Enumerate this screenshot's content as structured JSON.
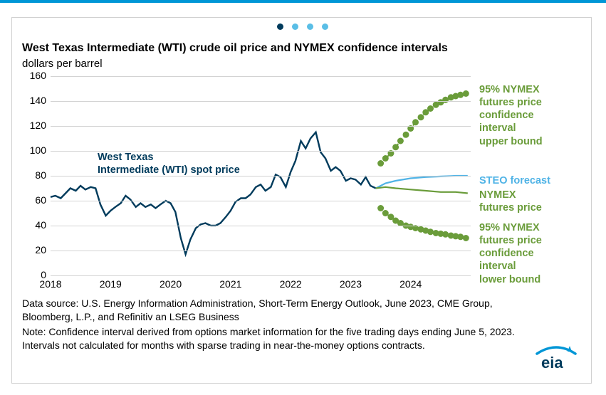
{
  "pager": {
    "count": 4,
    "active": 0,
    "active_color": "#003b5c",
    "inactive_color": "#5abee6"
  },
  "title": "West Texas Intermediate (WTI) crude oil price and NYMEX confidence intervals",
  "subtitle": "dollars per barrel",
  "chart": {
    "type": "line",
    "background_color": "#ffffff",
    "grid_color": "#d3d3d3",
    "yaxis": {
      "min": 0,
      "max": 160,
      "step": 20
    },
    "xaxis": {
      "min": 2018,
      "max": 2025,
      "ticks": [
        2018,
        2019,
        2020,
        2021,
        2022,
        2023,
        2024
      ]
    },
    "series": {
      "wti_spot": {
        "color": "#003b5c",
        "width": 2.4,
        "data": [
          [
            2018.0,
            63
          ],
          [
            2018.08,
            64
          ],
          [
            2018.17,
            62
          ],
          [
            2018.25,
            66
          ],
          [
            2018.33,
            70
          ],
          [
            2018.42,
            68
          ],
          [
            2018.5,
            72
          ],
          [
            2018.58,
            69
          ],
          [
            2018.67,
            71
          ],
          [
            2018.75,
            70
          ],
          [
            2018.83,
            57
          ],
          [
            2018.92,
            48
          ],
          [
            2019.0,
            52
          ],
          [
            2019.08,
            55
          ],
          [
            2019.17,
            58
          ],
          [
            2019.25,
            64
          ],
          [
            2019.33,
            61
          ],
          [
            2019.42,
            55
          ],
          [
            2019.5,
            58
          ],
          [
            2019.58,
            55
          ],
          [
            2019.67,
            57
          ],
          [
            2019.75,
            54
          ],
          [
            2019.83,
            57
          ],
          [
            2019.92,
            60
          ],
          [
            2020.0,
            58
          ],
          [
            2020.08,
            51
          ],
          [
            2020.17,
            30
          ],
          [
            2020.25,
            17
          ],
          [
            2020.33,
            29
          ],
          [
            2020.42,
            38
          ],
          [
            2020.5,
            41
          ],
          [
            2020.58,
            42
          ],
          [
            2020.67,
            40
          ],
          [
            2020.75,
            40
          ],
          [
            2020.83,
            42
          ],
          [
            2020.92,
            47
          ],
          [
            2021.0,
            52
          ],
          [
            2021.08,
            59
          ],
          [
            2021.17,
            62
          ],
          [
            2021.25,
            62
          ],
          [
            2021.33,
            65
          ],
          [
            2021.42,
            71
          ],
          [
            2021.5,
            73
          ],
          [
            2021.58,
            68
          ],
          [
            2021.67,
            71
          ],
          [
            2021.75,
            81
          ],
          [
            2021.83,
            79
          ],
          [
            2021.92,
            71
          ],
          [
            2022.0,
            83
          ],
          [
            2022.08,
            92
          ],
          [
            2022.17,
            108
          ],
          [
            2022.25,
            102
          ],
          [
            2022.33,
            110
          ],
          [
            2022.42,
            115
          ],
          [
            2022.5,
            99
          ],
          [
            2022.58,
            94
          ],
          [
            2022.67,
            84
          ],
          [
            2022.75,
            87
          ],
          [
            2022.83,
            84
          ],
          [
            2022.92,
            76
          ],
          [
            2023.0,
            78
          ],
          [
            2023.08,
            77
          ],
          [
            2023.17,
            73
          ],
          [
            2023.25,
            79
          ],
          [
            2023.33,
            72
          ],
          [
            2023.42,
            70
          ]
        ]
      },
      "steo_forecast": {
        "color": "#4fb3e6",
        "width": 2.2,
        "data": [
          [
            2023.42,
            70
          ],
          [
            2023.58,
            74
          ],
          [
            2023.75,
            76
          ],
          [
            2024.0,
            78
          ],
          [
            2024.25,
            79
          ],
          [
            2024.5,
            79.5
          ],
          [
            2024.75,
            80
          ],
          [
            2024.95,
            80
          ]
        ]
      },
      "nymex_futures": {
        "color": "#6a9c3a",
        "width": 2.2,
        "data": [
          [
            2023.42,
            70
          ],
          [
            2023.58,
            71
          ],
          [
            2023.75,
            70
          ],
          [
            2024.0,
            69
          ],
          [
            2024.25,
            68
          ],
          [
            2024.5,
            67
          ],
          [
            2024.75,
            67
          ],
          [
            2024.95,
            66
          ]
        ]
      },
      "ci_upper": {
        "color": "#6a9c3a",
        "width": 2,
        "marker": "circle",
        "marker_size": 4.5,
        "dash": "2,5",
        "data": [
          [
            2023.5,
            90
          ],
          [
            2023.58,
            94
          ],
          [
            2023.67,
            98
          ],
          [
            2023.75,
            103
          ],
          [
            2023.83,
            108
          ],
          [
            2023.92,
            113
          ],
          [
            2024.0,
            118
          ],
          [
            2024.08,
            123
          ],
          [
            2024.17,
            127
          ],
          [
            2024.25,
            131
          ],
          [
            2024.33,
            134
          ],
          [
            2024.42,
            137
          ],
          [
            2024.5,
            139
          ],
          [
            2024.58,
            141
          ],
          [
            2024.67,
            143
          ],
          [
            2024.75,
            144
          ],
          [
            2024.83,
            145
          ],
          [
            2024.92,
            146
          ]
        ]
      },
      "ci_lower": {
        "color": "#6a9c3a",
        "width": 2,
        "marker": "circle",
        "marker_size": 4.5,
        "dash": "2,5",
        "data": [
          [
            2023.5,
            54
          ],
          [
            2023.58,
            50
          ],
          [
            2023.67,
            47
          ],
          [
            2023.75,
            44
          ],
          [
            2023.83,
            42
          ],
          [
            2023.92,
            40
          ],
          [
            2024.0,
            39
          ],
          [
            2024.08,
            38
          ],
          [
            2024.17,
            37
          ],
          [
            2024.25,
            36
          ],
          [
            2024.33,
            35
          ],
          [
            2024.42,
            34
          ],
          [
            2024.5,
            33.5
          ],
          [
            2024.58,
            33
          ],
          [
            2024.67,
            32
          ],
          [
            2024.75,
            31.5
          ],
          [
            2024.83,
            31
          ],
          [
            2024.92,
            30
          ]
        ]
      }
    },
    "annotations": {
      "wti_label": {
        "text": "West Texas\nIntermediate (WTI) spot price",
        "color": "#003b5c"
      },
      "upper_label": {
        "text": "95% NYMEX\nfutures price\nconfidence\ninterval\nupper bound",
        "color": "#6a9c3a"
      },
      "steo_label": {
        "text": "STEO forecast",
        "color": "#4fb3e6"
      },
      "futures_label": {
        "text": "NYMEX\nfutures price",
        "color": "#6a9c3a"
      },
      "lower_label": {
        "text": "95% NYMEX\nfutures price\nconfidence\ninterval\nlower bound",
        "color": "#6a9c3a"
      }
    }
  },
  "footer": {
    "source": "Data source: U.S. Energy Information Administration, Short-Term Energy Outlook, June 2023, CME Group, Bloomberg, L.P., and Refinitiv an LSEG Business",
    "note": "Note: Confidence interval derived from options market information for the five trading days ending June 5, 2023. Intervals not calculated for months with sparse trading in near-the-money options contracts."
  },
  "logo": {
    "text": "eia",
    "color": "#003b5c",
    "arc_color": "#0096d6"
  }
}
